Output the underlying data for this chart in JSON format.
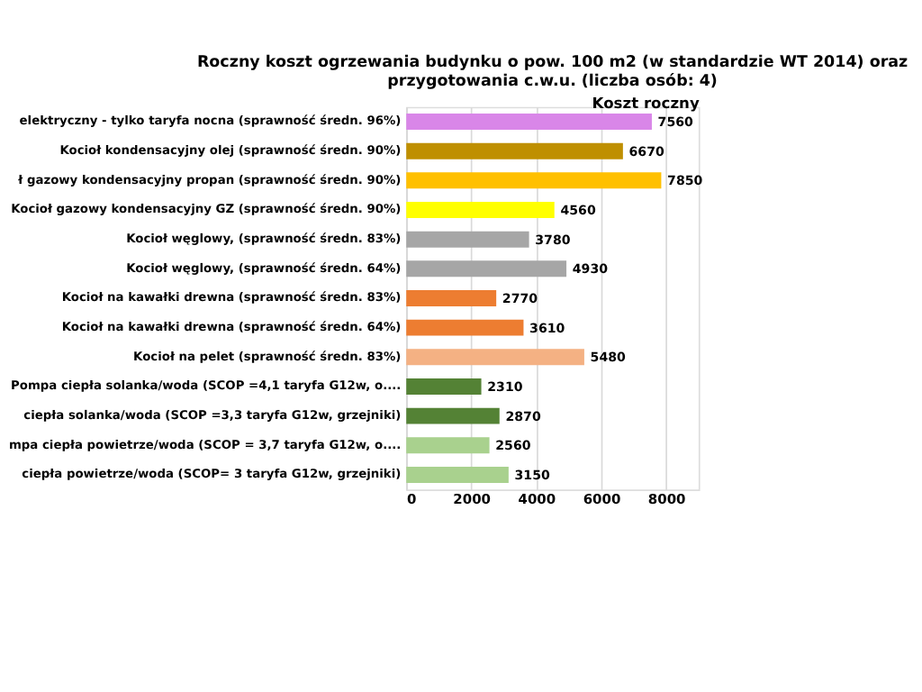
{
  "chart_data": {
    "type": "bar",
    "orientation": "horizontal",
    "title": "Roczny koszt  ogrzewania budynku o pow. 100 m2 (w standardzie  WT 2014) oraz\nprzygotowania  c.w.u. (liczba osób: 4)",
    "xlabel": "Koszt roczny",
    "categories": [
      "elektryczny - tylko taryfa nocna (sprawność średn. 96%)",
      "Kocioł  kondensacyjny olej (sprawność średn. 90%)",
      "ł gazowy kondensacyjny propan (sprawność średn. 90%)",
      "Kocioł gazowy kondensacyjny GZ (sprawność średn. 90%)",
      "Kocioł węglowy,  (sprawność średn. 83%)",
      "Kocioł węglowy,  (sprawność średn. 64%)",
      "Kocioł na kawałki drewna (sprawność średn. 83%)",
      "Kocioł na kawałki drewna (sprawność średn. 64%)",
      "Kocioł na pelet (sprawność średn. 83%)",
      "Pompa ciepła solanka/woda (SCOP =4,1 taryfa G12w, o....",
      "ciepła solanka/woda (SCOP =3,3 taryfa G12w, grzejniki)",
      "mpa ciepła powietrze/woda (SCOP = 3,7 taryfa G12w, o....",
      "ciepła powietrze/woda (SCOP= 3 taryfa G12w, grzejniki)"
    ],
    "values": [
      7560,
      6670,
      7850,
      4560,
      3780,
      4930,
      2770,
      3610,
      5480,
      2310,
      2870,
      2560,
      3150
    ],
    "colors": [
      "#d986e8",
      "#bf8f00",
      "#ffc000",
      "#ffff00",
      "#a6a6a6",
      "#a6a6a6",
      "#ed7d31",
      "#ed7d31",
      "#f4b183",
      "#548235",
      "#548235",
      "#a9d18e",
      "#a9d18e"
    ],
    "xlim": [
      0,
      9000
    ],
    "xticks": [
      0,
      2000,
      4000,
      6000,
      8000
    ],
    "data_labels": true,
    "grid": "x"
  }
}
